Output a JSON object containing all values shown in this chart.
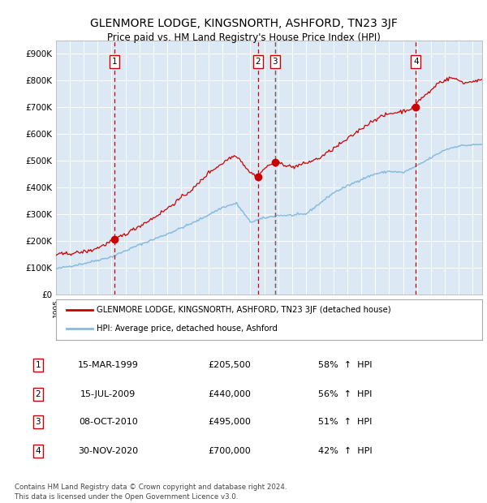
{
  "title": "GLENMORE LODGE, KINGSNORTH, ASHFORD, TN23 3JF",
  "subtitle": "Price paid vs. HM Land Registry's House Price Index (HPI)",
  "background_color": "#ffffff",
  "plot_bg_color": "#dce9f5",
  "hpi_color": "#88bbdd",
  "sale_color": "#cc0000",
  "vline_color_sale": "#cc0000",
  "vline_color_grey": "#888888",
  "sales": [
    {
      "num": 1,
      "date_label": "15-MAR-1999",
      "date_x": 1999.21,
      "price": 205500,
      "pct": "58%",
      "dir": "↑"
    },
    {
      "num": 2,
      "date_label": "15-JUL-2009",
      "date_x": 2009.54,
      "price": 440000,
      "pct": "56%",
      "dir": "↑"
    },
    {
      "num": 3,
      "date_label": "08-OCT-2010",
      "date_x": 2010.77,
      "price": 495000,
      "pct": "51%",
      "dir": "↑"
    },
    {
      "num": 4,
      "date_label": "30-NOV-2020",
      "date_x": 2020.92,
      "price": 700000,
      "pct": "42%",
      "dir": "↑"
    }
  ],
  "legend_label_red": "GLENMORE LODGE, KINGSNORTH, ASHFORD, TN23 3JF (detached house)",
  "legend_label_blue": "HPI: Average price, detached house, Ashford",
  "footer": "Contains HM Land Registry data © Crown copyright and database right 2024.\nThis data is licensed under the Open Government Licence v3.0.",
  "ylim": [
    0,
    950000
  ],
  "xlim_start": 1995.0,
  "xlim_end": 2025.7,
  "yticks": [
    0,
    100000,
    200000,
    300000,
    400000,
    500000,
    600000,
    700000,
    800000,
    900000
  ],
  "ytick_labels": [
    "£0",
    "£100K",
    "£200K",
    "£300K",
    "£400K",
    "£500K",
    "£600K",
    "£700K",
    "£800K",
    "£900K"
  ]
}
